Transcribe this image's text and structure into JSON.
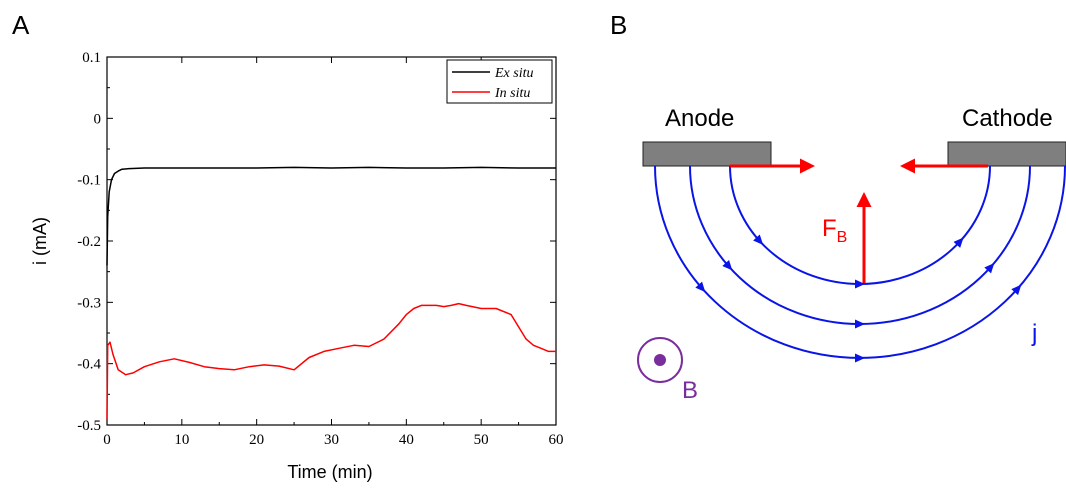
{
  "panels": {
    "a": "A",
    "b": "B"
  },
  "chart_data": {
    "type": "line",
    "xlabel": "Time (min)",
    "ylabel": "i (mA)",
    "xlim": [
      0,
      60
    ],
    "ylim": [
      -0.5,
      0.1
    ],
    "xticks": [
      0,
      10,
      20,
      30,
      40,
      50,
      60
    ],
    "yticks": [
      -0.5,
      -0.4,
      -0.3,
      -0.2,
      -0.1,
      0,
      0.1
    ],
    "xtick_labels": [
      "0",
      "10",
      "20",
      "30",
      "40",
      "50",
      "60"
    ],
    "ytick_labels": [
      "-0.5",
      "-0.4",
      "-0.3",
      "-0.2",
      "-0.1",
      "0",
      "0.1"
    ],
    "grid": false,
    "legend": "top-right",
    "series": [
      {
        "name": "Ex situ",
        "color": "#000000",
        "x": [
          0,
          0.1,
          0.3,
          0.6,
          1,
          1.5,
          2,
          3,
          5,
          10,
          15,
          20,
          25,
          30,
          35,
          40,
          45,
          50,
          55,
          60
        ],
        "y": [
          -0.24,
          -0.16,
          -0.12,
          -0.1,
          -0.09,
          -0.086,
          -0.083,
          -0.082,
          -0.081,
          -0.081,
          -0.081,
          -0.081,
          -0.08,
          -0.081,
          -0.08,
          -0.081,
          -0.081,
          -0.08,
          -0.081,
          -0.081
        ]
      },
      {
        "name": "In situ",
        "color": "#ff0000",
        "x": [
          0,
          0.1,
          0.4,
          0.8,
          1.5,
          2.5,
          3.5,
          5,
          7,
          9,
          11,
          13,
          15,
          17,
          19,
          21,
          23,
          25,
          27,
          29,
          31,
          33,
          35,
          37,
          39,
          40,
          41,
          42,
          43,
          44,
          45,
          46,
          47,
          48,
          50,
          52,
          54,
          55,
          56,
          57,
          58,
          59,
          60
        ],
        "y": [
          -0.49,
          -0.37,
          -0.365,
          -0.385,
          -0.41,
          -0.418,
          -0.415,
          -0.405,
          -0.397,
          -0.392,
          -0.398,
          -0.405,
          -0.408,
          -0.41,
          -0.405,
          -0.402,
          -0.404,
          -0.41,
          -0.39,
          -0.38,
          -0.375,
          -0.37,
          -0.372,
          -0.36,
          -0.335,
          -0.32,
          -0.31,
          -0.305,
          -0.305,
          -0.305,
          -0.307,
          -0.305,
          -0.302,
          -0.305,
          -0.31,
          -0.31,
          -0.32,
          -0.34,
          -0.36,
          -0.37,
          -0.375,
          -0.38,
          -0.38
        ]
      }
    ]
  },
  "diagram": {
    "anode_label": "Anode",
    "cathode_label": "Cathode",
    "force_label": "F",
    "force_subscript": "B",
    "current_label": "j",
    "field_label": "B",
    "colors": {
      "current": "#0a14e6",
      "force": "#ff0000",
      "field": "#7a2e9e",
      "electrode": "#7f7f7f"
    }
  }
}
